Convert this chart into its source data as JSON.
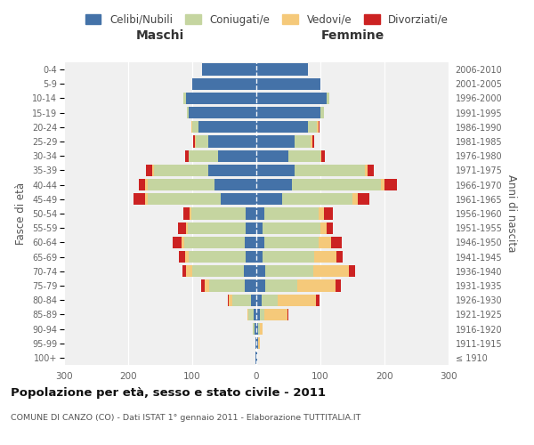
{
  "age_groups": [
    "100+",
    "95-99",
    "90-94",
    "85-89",
    "80-84",
    "75-79",
    "70-74",
    "65-69",
    "60-64",
    "55-59",
    "50-54",
    "45-49",
    "40-44",
    "35-39",
    "30-34",
    "25-29",
    "20-24",
    "15-19",
    "10-14",
    "5-9",
    "0-4"
  ],
  "birth_years": [
    "≤ 1910",
    "1911-1915",
    "1916-1920",
    "1921-1925",
    "1926-1930",
    "1931-1935",
    "1936-1940",
    "1941-1945",
    "1946-1950",
    "1951-1955",
    "1956-1960",
    "1961-1965",
    "1966-1970",
    "1971-1975",
    "1976-1980",
    "1981-1985",
    "1986-1990",
    "1991-1995",
    "1996-2000",
    "2001-2005",
    "2006-2010"
  ],
  "maschi": {
    "celibi": [
      2,
      2,
      3,
      4,
      8,
      18,
      20,
      16,
      18,
      17,
      16,
      55,
      65,
      75,
      60,
      75,
      90,
      105,
      110,
      100,
      85
    ],
    "coniugati": [
      0,
      0,
      2,
      8,
      30,
      55,
      80,
      90,
      95,
      90,
      85,
      115,
      105,
      85,
      45,
      20,
      10,
      3,
      4,
      0,
      0
    ],
    "vedovi": [
      0,
      0,
      0,
      2,
      5,
      8,
      10,
      5,
      3,
      3,
      3,
      3,
      3,
      2,
      1,
      1,
      1,
      0,
      0,
      0,
      0
    ],
    "divorziati": [
      0,
      0,
      0,
      0,
      2,
      5,
      5,
      10,
      15,
      12,
      10,
      18,
      10,
      10,
      5,
      2,
      1,
      0,
      0,
      0,
      0
    ]
  },
  "femmine": {
    "nubili": [
      2,
      3,
      3,
      5,
      8,
      14,
      14,
      10,
      12,
      10,
      12,
      40,
      55,
      60,
      50,
      60,
      80,
      100,
      110,
      100,
      80
    ],
    "coniugate": [
      0,
      0,
      2,
      8,
      25,
      50,
      75,
      80,
      85,
      90,
      85,
      110,
      140,
      110,
      50,
      25,
      15,
      5,
      4,
      0,
      0
    ],
    "vedove": [
      0,
      2,
      5,
      35,
      60,
      60,
      55,
      35,
      20,
      10,
      8,
      8,
      5,
      4,
      2,
      2,
      2,
      0,
      0,
      0,
      0
    ],
    "divorziate": [
      0,
      0,
      0,
      2,
      5,
      8,
      10,
      10,
      16,
      10,
      15,
      18,
      20,
      10,
      5,
      3,
      2,
      0,
      0,
      0,
      0
    ]
  },
  "colors": {
    "celibi": "#4472a8",
    "coniugati": "#c5d5a0",
    "vedovi": "#f5c97a",
    "divorziati": "#cc2222"
  },
  "xlim": 300,
  "title": "Popolazione per età, sesso e stato civile - 2011",
  "subtitle": "COMUNE DI CANZO (CO) - Dati ISTAT 1° gennaio 2011 - Elaborazione TUTTITALIA.IT",
  "xlabel_left": "Maschi",
  "xlabel_right": "Femmine",
  "ylabel_left": "Fasce di età",
  "ylabel_right": "Anni di nascita",
  "legend_labels": [
    "Celibi/Nubili",
    "Coniugati/e",
    "Vedovi/e",
    "Divorziati/e"
  ],
  "bg_color": "#f0f0f0"
}
